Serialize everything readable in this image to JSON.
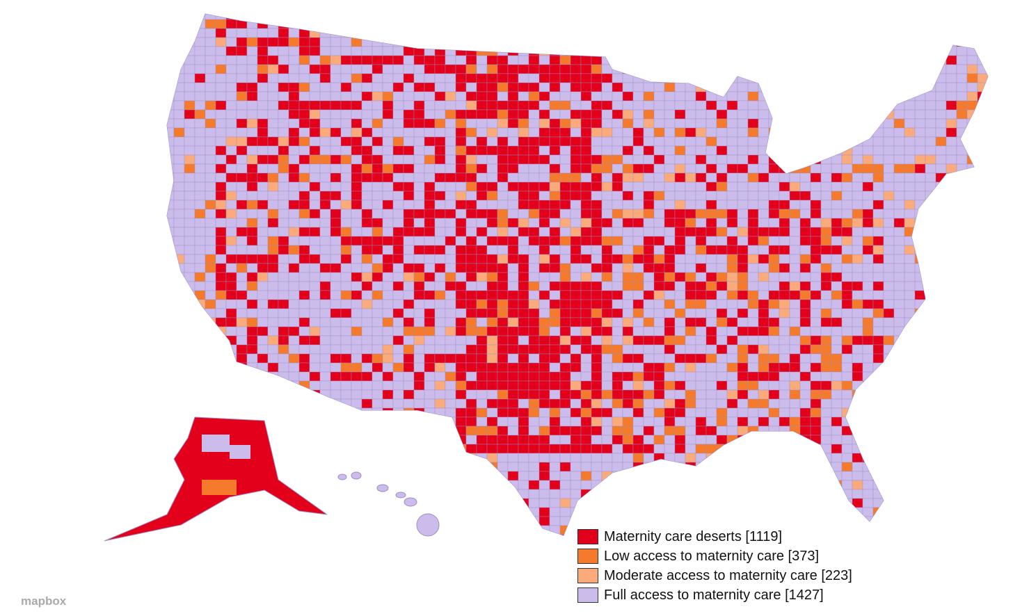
{
  "legend": {
    "items": [
      {
        "label": "Maternity care deserts [1119]",
        "color": "#e3001b"
      },
      {
        "label": "Low access to maternity care [373]",
        "color": "#f57a2c"
      },
      {
        "label": "Moderate access to maternity care [223]",
        "color": "#fbaa7c"
      },
      {
        "label": "Full access to maternity care [1427]",
        "color": "#cbbcec"
      }
    ]
  },
  "attribution": "mapbox"
}
